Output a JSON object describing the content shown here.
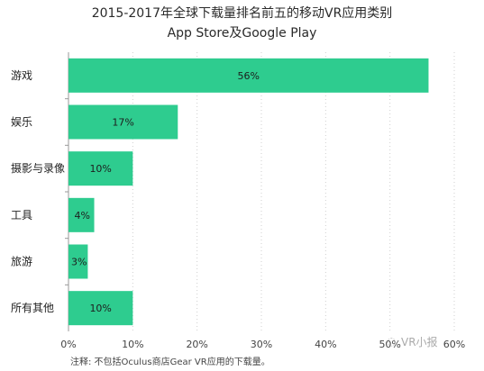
{
  "chart_data": {
    "type": "bar",
    "orientation": "horizontal",
    "title": "2015-2017年全球下载量排名前五的移动VR应用类别",
    "subtitle": "App Store及Google Play",
    "categories": [
      "游戏",
      "娱乐",
      "摄影与录像",
      "工具",
      "旅游",
      "所有其他"
    ],
    "values": [
      56,
      17,
      10,
      4,
      3,
      10
    ],
    "data_labels": [
      "56%",
      "17%",
      "10%",
      "4%",
      "3%",
      "10%"
    ],
    "xlim": [
      0,
      60
    ],
    "xticks": [
      "0%",
      "10%",
      "20%",
      "30%",
      "40%",
      "50%",
      "60%"
    ],
    "grid": "vertical-only",
    "bar_color": "#2ecc8f",
    "note": "注释: 不包括Oculus商店Gear VR应用的下载量。"
  },
  "watermark": "VR小报",
  "watermark_icon": "wechat-icon"
}
